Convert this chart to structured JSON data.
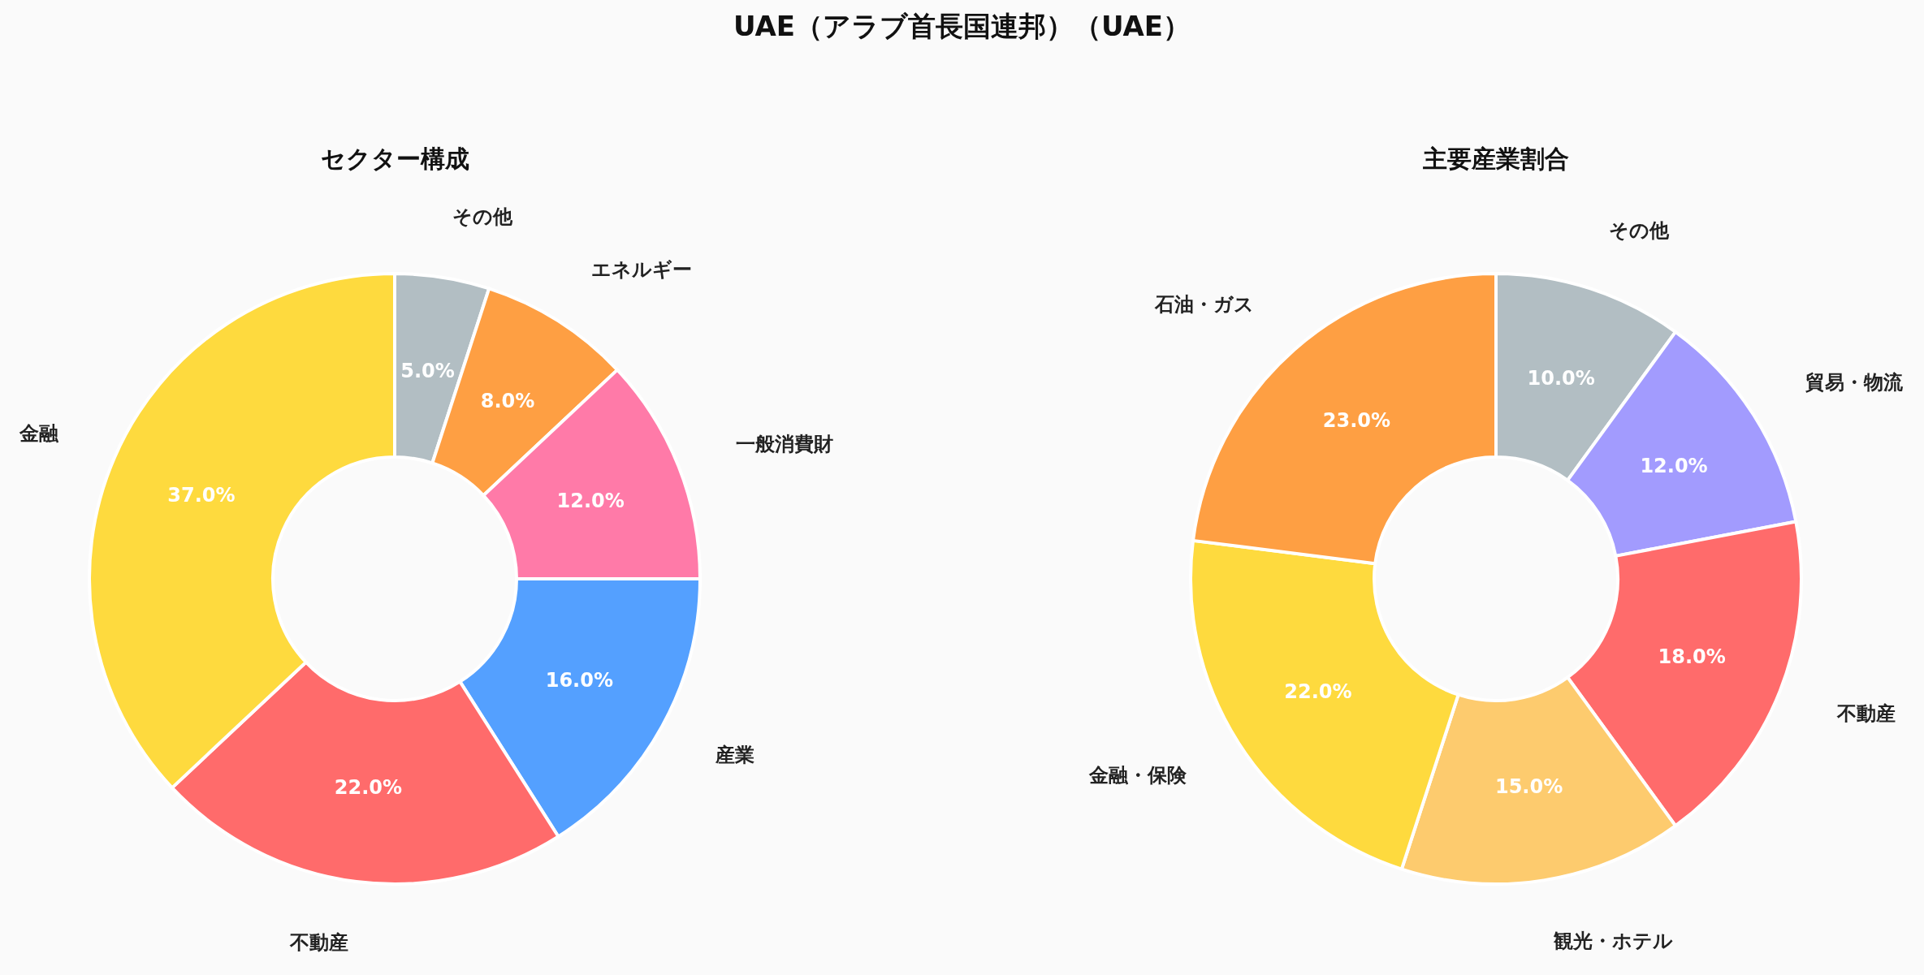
{
  "chart_data": [
    {
      "type": "donut",
      "title": "セクター構成",
      "annotations": [
        "UAE（アラブ首長国連邦）（UAE）"
      ],
      "categories": [
        "その他",
        "エネルギー",
        "一般消費財",
        "産業",
        "不動産",
        "金融"
      ],
      "values": [
        5,
        8,
        12,
        16,
        22,
        37
      ],
      "value_labels": [
        "5.0%",
        "8.0%",
        "12.0%",
        "16.0%",
        "22.0%",
        "37.0%"
      ],
      "colors": [
        "#b2bec3",
        "#fe9f43",
        "#ff7aa8",
        "#54a0ff",
        "#ff6b6b",
        "#feda3e"
      ]
    },
    {
      "type": "donut",
      "title": "主要産業割合",
      "categories": [
        "その他",
        "貿易・物流",
        "不動産",
        "観光・ホテル",
        "金融・保険",
        "石油・ガス"
      ],
      "values": [
        10,
        12,
        18,
        15,
        22,
        23
      ],
      "value_labels": [
        "10.0%",
        "12.0%",
        "18.0%",
        "15.0%",
        "22.0%",
        "23.0%"
      ],
      "colors": [
        "#b2bec3",
        "#a29bfe",
        "#ff6b6b",
        "#fdcb6e",
        "#feda3e",
        "#fe9f43"
      ]
    }
  ]
}
